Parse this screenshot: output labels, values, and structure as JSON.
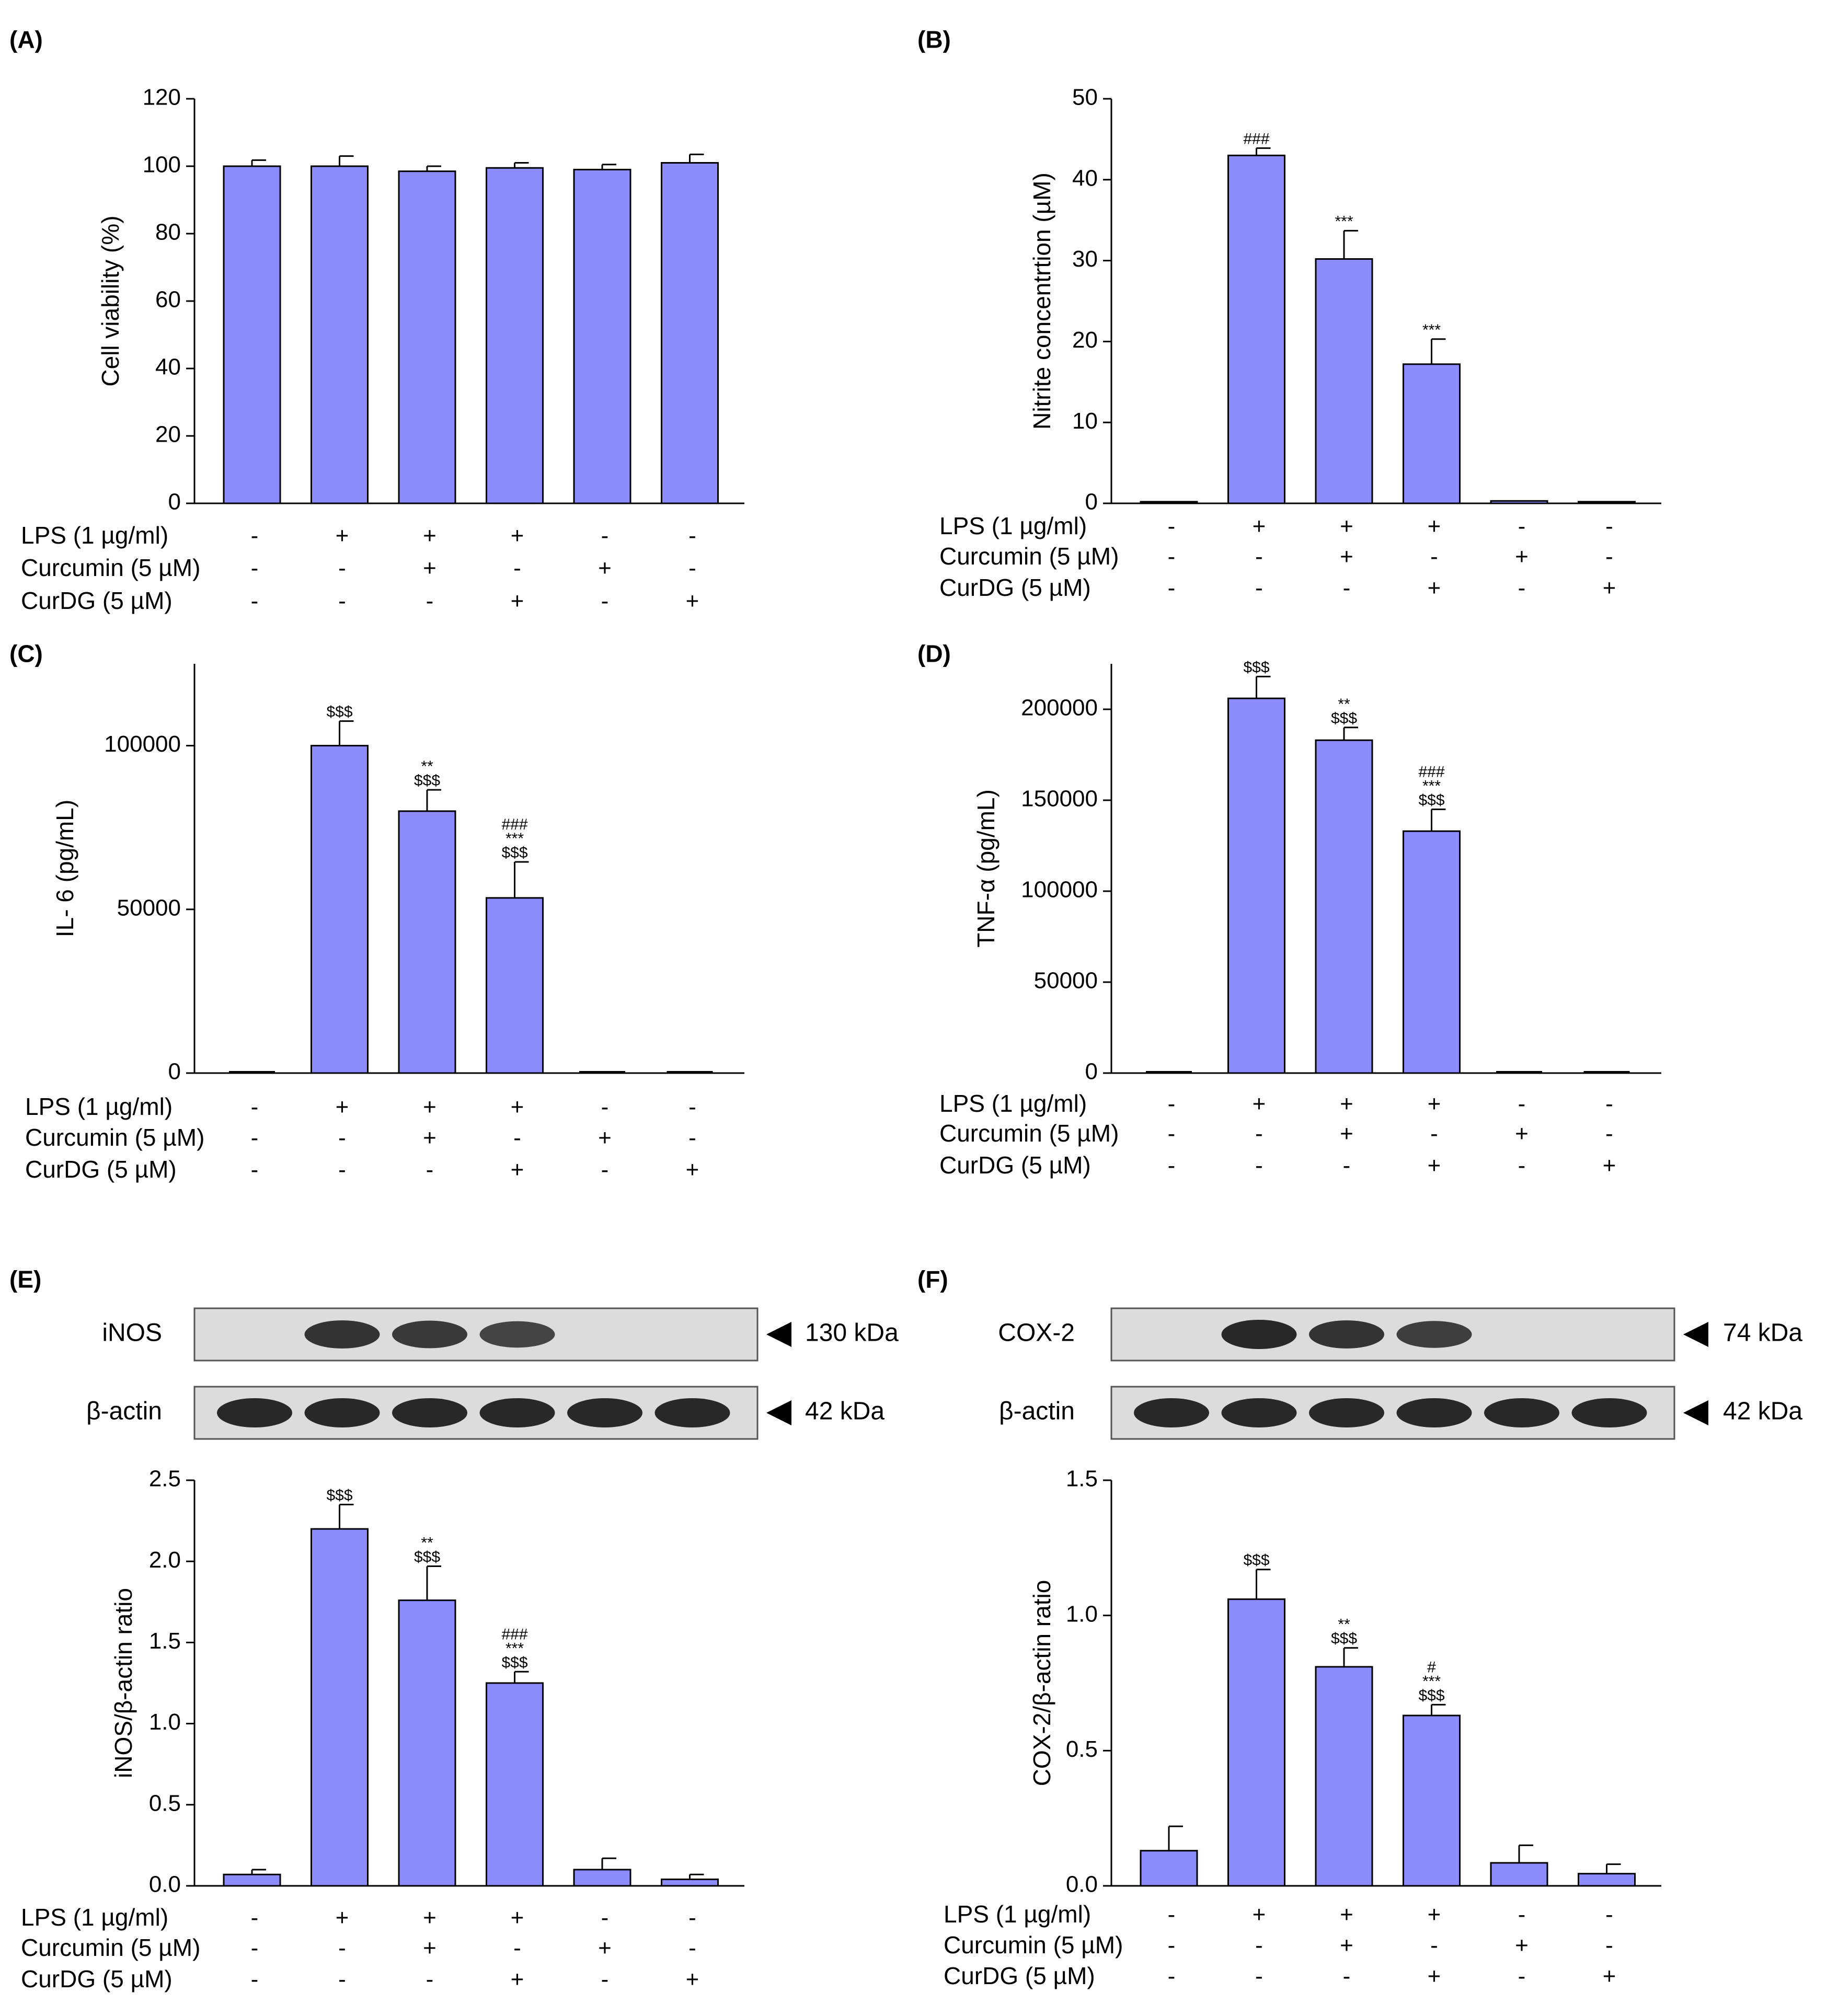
{
  "colors": {
    "bar": "#8C8CFF",
    "axis": "#000000",
    "blot_bg": "#DCDCDC",
    "band": "#1E1E1E"
  },
  "conditions": {
    "labels": [
      "LPS (1 µg/ml)",
      "Curcumin (5 µM)",
      "CurDG (5 µM)"
    ],
    "signs": [
      [
        "-",
        "+",
        "+",
        "+",
        "-",
        "-"
      ],
      [
        "-",
        "-",
        "+",
        "-",
        "+",
        "-"
      ],
      [
        "-",
        "-",
        "-",
        "+",
        "-",
        "+"
      ]
    ]
  },
  "blots": [
    {
      "panel": "E",
      "rows": [
        {
          "protein": "iNOS",
          "size": "130 kDa",
          "band_intensity": [
            0.0,
            0.9,
            0.85,
            0.75,
            0.0,
            0.0
          ]
        },
        {
          "protein": "β-actin",
          "size": "42 kDa",
          "band_intensity": [
            1.0,
            1.0,
            1.0,
            1.0,
            1.0,
            1.0
          ]
        }
      ]
    },
    {
      "panel": "F",
      "rows": [
        {
          "protein": "COX-2",
          "size": "74 kDa",
          "band_intensity": [
            0.0,
            1.0,
            0.9,
            0.8,
            0.0,
            0.0
          ]
        },
        {
          "protein": "β-actin",
          "size": "42 kDa",
          "band_intensity": [
            1.0,
            1.0,
            1.0,
            1.0,
            1.0,
            1.0
          ]
        }
      ]
    }
  ],
  "chart_data": [
    {
      "panel": "A",
      "panel_label": "(A)",
      "type": "bar",
      "ylabel": "Cell viability (%)",
      "ylim": [
        0,
        120
      ],
      "yticks": [
        "0",
        "20",
        "40",
        "60",
        "80",
        "100",
        "120"
      ],
      "values": [
        100,
        100,
        98.5,
        99.5,
        99,
        101
      ],
      "errors": [
        1.8,
        3,
        1.5,
        1.5,
        1.5,
        2.5
      ],
      "annotations": [
        [],
        [],
        [],
        [],
        [],
        []
      ]
    },
    {
      "panel": "B",
      "panel_label": "(B)",
      "type": "bar",
      "ylabel": "Nitrite concentrtion (µM)",
      "ylim": [
        0,
        50
      ],
      "yticks": [
        "0",
        "10",
        "20",
        "30",
        "40",
        "50"
      ],
      "values": [
        0.2,
        43,
        30.2,
        17.2,
        0.3,
        0.2
      ],
      "errors": [
        0,
        0.9,
        3.5,
        3.1,
        0,
        0
      ],
      "annotations": [
        [],
        [
          "###"
        ],
        [
          "***"
        ],
        [
          "***"
        ],
        [],
        []
      ]
    },
    {
      "panel": "C",
      "panel_label": "(C)",
      "type": "bar",
      "ylabel": "IL- 6 (pg/mL)",
      "ylim": [
        0,
        125000
      ],
      "yticks": [
        "0",
        "50000",
        "100000"
      ],
      "values": [
        0,
        100000,
        80000,
        53500,
        0,
        0
      ],
      "errors": [
        0,
        7500,
        6500,
        11000,
        0,
        0
      ],
      "annotations": [
        [],
        [
          "$$$"
        ],
        [
          "$$$",
          "**"
        ],
        [
          "$$$",
          "***",
          "###"
        ],
        [],
        []
      ]
    },
    {
      "panel": "D",
      "panel_label": "(D)",
      "type": "bar",
      "ylabel": "TNF-α (pg/mL)",
      "ylim": [
        0,
        225000
      ],
      "yticks": [
        "0",
        "50000",
        "100000",
        "150000",
        "200000"
      ],
      "values": [
        0,
        206000,
        183000,
        133000,
        300,
        300
      ],
      "errors": [
        0,
        12000,
        7000,
        12000,
        0,
        0
      ],
      "annotations": [
        [],
        [
          "$$$"
        ],
        [
          "$$$",
          "**"
        ],
        [
          "$$$",
          "***",
          "###"
        ],
        [],
        []
      ]
    },
    {
      "panel": "E",
      "panel_label": "(E)",
      "type": "bar",
      "ylabel": "iNOS/β-actin ratio",
      "ylim": [
        0,
        2.5
      ],
      "yticks": [
        "0.0",
        "0.5",
        "1.0",
        "1.5",
        "2.0",
        "2.5"
      ],
      "values": [
        0.07,
        2.2,
        1.76,
        1.25,
        0.1,
        0.04
      ],
      "errors": [
        0.03,
        0.15,
        0.21,
        0.07,
        0.07,
        0.03
      ],
      "annotations": [
        [],
        [
          "$$$"
        ],
        [
          "$$$",
          "**"
        ],
        [
          "$$$",
          "***",
          "###"
        ],
        [],
        []
      ]
    },
    {
      "panel": "F",
      "panel_label": "(F)",
      "type": "bar",
      "ylabel": "COX-2/β-actin ratio",
      "ylim": [
        0,
        1.5
      ],
      "yticks": [
        "0.0",
        "0.5",
        "1.0",
        "1.5"
      ],
      "values": [
        0.13,
        1.06,
        0.81,
        0.63,
        0.085,
        0.045
      ],
      "errors": [
        0.09,
        0.11,
        0.07,
        0.04,
        0.065,
        0.035
      ],
      "annotations": [
        [],
        [
          "$$$"
        ],
        [
          "$$$",
          "**"
        ],
        [
          "$$$",
          "***",
          "#"
        ],
        [],
        []
      ]
    }
  ]
}
